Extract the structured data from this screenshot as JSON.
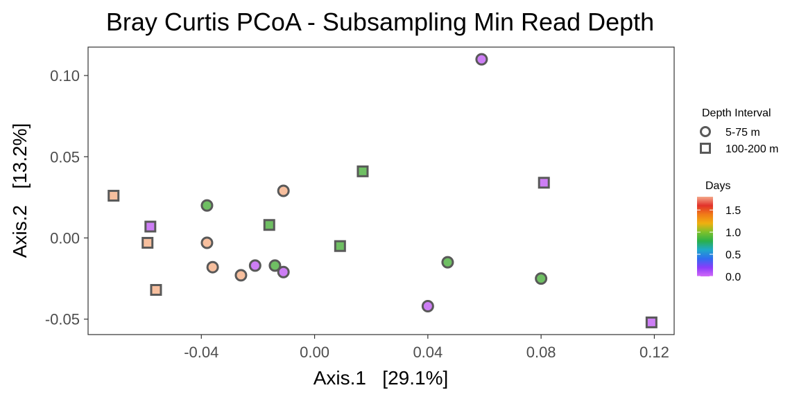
{
  "chart_data": {
    "type": "scatter",
    "title": "Bray Curtis PCoA - Subsampling Min Read Depth",
    "xlabel": "Axis.1   [29.1%]",
    "ylabel": "Axis.2   [13.2%]",
    "xlim": [
      -0.08,
      0.127
    ],
    "ylim": [
      -0.0595,
      0.1175
    ],
    "xticks": [
      -0.04,
      0.0,
      0.04,
      0.08,
      0.12
    ],
    "xtick_labels": [
      "-0.04",
      "0.00",
      "0.04",
      "0.08",
      "0.12"
    ],
    "yticks": [
      -0.05,
      0.0,
      0.05,
      0.1
    ],
    "ytick_labels": [
      "-0.05",
      "0.00",
      "0.05",
      "0.10"
    ],
    "grid": false,
    "legend_placement": "right",
    "shape_legend": {
      "title": "Depth Interval",
      "entries": [
        {
          "label": "5-75 m",
          "shape": "circle"
        },
        {
          "label": "100-200 m",
          "shape": "square"
        }
      ]
    },
    "color_legend": {
      "title": "Days",
      "min": 0.0,
      "max": 1.8,
      "ticks": [
        0.0,
        0.5,
        1.0,
        1.5
      ],
      "tick_labels": [
        "0.0",
        "0.5",
        "1.0",
        "1.5"
      ],
      "colors": [
        "#d36af7",
        "#8a3cfa",
        "#2f6df0",
        "#1fa9c9",
        "#2bb04a",
        "#7cc12b",
        "#f0b010",
        "#f07b18",
        "#e2322a",
        "#f4a98a"
      ]
    },
    "points": [
      {
        "x": 0.059,
        "y": 0.11,
        "shape": "circle",
        "fill": "#cd7ef5"
      },
      {
        "x": 0.017,
        "y": 0.041,
        "shape": "square",
        "fill": "#6fbf63"
      },
      {
        "x": 0.081,
        "y": 0.034,
        "shape": "square",
        "fill": "#cd7ef5"
      },
      {
        "x": -0.071,
        "y": 0.026,
        "shape": "square",
        "fill": "#f7bf9e"
      },
      {
        "x": -0.038,
        "y": 0.02,
        "shape": "circle",
        "fill": "#6fbf63"
      },
      {
        "x": -0.011,
        "y": 0.029,
        "shape": "circle",
        "fill": "#f7bf9e"
      },
      {
        "x": -0.058,
        "y": 0.007,
        "shape": "square",
        "fill": "#cd7ef5"
      },
      {
        "x": -0.016,
        "y": 0.008,
        "shape": "square",
        "fill": "#6fbf63"
      },
      {
        "x": -0.059,
        "y": -0.003,
        "shape": "square",
        "fill": "#f7bf9e"
      },
      {
        "x": -0.038,
        "y": -0.003,
        "shape": "circle",
        "fill": "#f7bf9e"
      },
      {
        "x": 0.009,
        "y": -0.005,
        "shape": "square",
        "fill": "#6fbf63"
      },
      {
        "x": -0.036,
        "y": -0.018,
        "shape": "circle",
        "fill": "#f7bf9e"
      },
      {
        "x": -0.021,
        "y": -0.017,
        "shape": "circle",
        "fill": "#cd7ef5"
      },
      {
        "x": -0.014,
        "y": -0.017,
        "shape": "circle",
        "fill": "#6fbf63"
      },
      {
        "x": -0.026,
        "y": -0.023,
        "shape": "circle",
        "fill": "#f7bf9e"
      },
      {
        "x": -0.011,
        "y": -0.021,
        "shape": "circle",
        "fill": "#cd7ef5"
      },
      {
        "x": 0.047,
        "y": -0.015,
        "shape": "circle",
        "fill": "#6fbf63"
      },
      {
        "x": 0.08,
        "y": -0.025,
        "shape": "circle",
        "fill": "#6fbf63"
      },
      {
        "x": -0.056,
        "y": -0.032,
        "shape": "square",
        "fill": "#f7bf9e"
      },
      {
        "x": 0.04,
        "y": -0.042,
        "shape": "circle",
        "fill": "#cd7ef5"
      },
      {
        "x": 0.119,
        "y": -0.052,
        "shape": "square",
        "fill": "#cd7ef5"
      }
    ],
    "marker_stroke": "#595959"
  }
}
